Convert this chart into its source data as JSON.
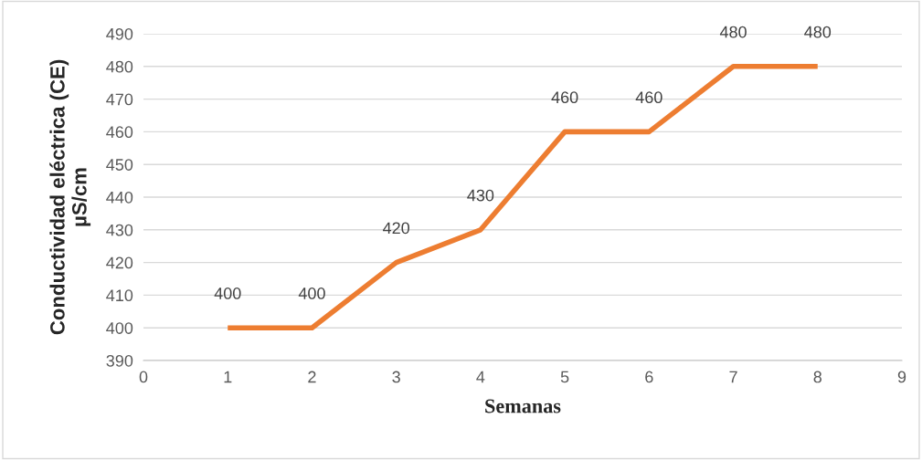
{
  "chart_data": {
    "type": "line",
    "xlabel": "Semanas",
    "ylabel": "Conductividad eléctrica (CE)\nµS/cm",
    "x": [
      1,
      2,
      3,
      4,
      5,
      6,
      7,
      8
    ],
    "series": [
      {
        "color": "#ed7d31",
        "values": [
          400,
          400,
          420,
          430,
          460,
          460,
          480,
          480
        ]
      }
    ],
    "xlim": [
      0,
      9
    ],
    "xticks": [
      0,
      1,
      2,
      3,
      4,
      5,
      6,
      7,
      8,
      9
    ],
    "ylim": [
      390,
      490
    ],
    "yticks": [
      390,
      400,
      410,
      420,
      430,
      440,
      450,
      460,
      470,
      480,
      490
    ],
    "grid": "y",
    "data_labels": true,
    "marker": "none",
    "line_style": "solid",
    "legend": false
  }
}
